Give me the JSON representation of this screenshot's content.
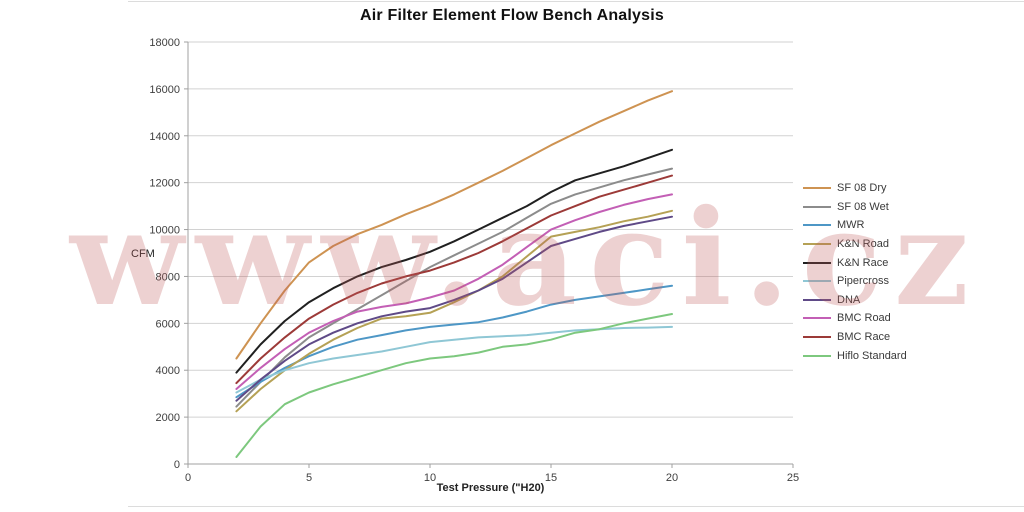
{
  "page": {
    "title": "Air Filter Element Flow Bench Analysis"
  },
  "watermark": {
    "text": "www.aci.cz",
    "color_rgba": "rgba(192,88,88,0.28)"
  },
  "chart_data": {
    "type": "line",
    "title": "Air Filter Element Flow Bench Analysis",
    "xlabel": "Test Pressure (\"H20)",
    "ylabel": "CFM",
    "xlim": [
      0,
      25
    ],
    "ylim": [
      0,
      18000
    ],
    "xticks": [
      0,
      5,
      10,
      15,
      20,
      25
    ],
    "yticks": [
      0,
      2000,
      4000,
      6000,
      8000,
      10000,
      12000,
      14000,
      16000,
      18000
    ],
    "grid": "horizontal-only",
    "legend_position": "right",
    "axis_color": "#a0a0a0",
    "grid_color": "#d2d2d2",
    "x": [
      2,
      3,
      4,
      5,
      6,
      7,
      8,
      9,
      10,
      11,
      12,
      13,
      14,
      15,
      16,
      17,
      18,
      19,
      20
    ],
    "series": [
      {
        "name": "SF 08 Dry",
        "color": "#CE9352",
        "values": [
          4500,
          6000,
          7400,
          8600,
          9300,
          9800,
          10200,
          10650,
          11050,
          11500,
          12000,
          12500,
          13050,
          13600,
          14100,
          14600,
          15050,
          15500,
          15900
        ]
      },
      {
        "name": "SF 08 Wet",
        "color": "#8C8C8C",
        "values": [
          2450,
          3500,
          4550,
          5400,
          6000,
          6600,
          7200,
          7800,
          8400,
          8900,
          9400,
          9900,
          10500,
          11100,
          11500,
          11800,
          12100,
          12350,
          12600
        ]
      },
      {
        "name": "MWR",
        "color": "#4E97C6",
        "values": [
          2850,
          3500,
          4100,
          4600,
          5000,
          5300,
          5500,
          5700,
          5850,
          5950,
          6050,
          6250,
          6500,
          6800,
          7000,
          7150,
          7300,
          7450,
          7600
        ]
      },
      {
        "name": "K&N Road",
        "color": "#B5A155",
        "values": [
          2250,
          3200,
          4000,
          4700,
          5300,
          5800,
          6200,
          6300,
          6450,
          6900,
          7400,
          8000,
          8850,
          9700,
          9900,
          10100,
          10350,
          10550,
          10800
        ]
      },
      {
        "name": "K&N Race",
        "color": "#202020",
        "values": [
          3900,
          5100,
          6100,
          6900,
          7500,
          8000,
          8400,
          8700,
          9050,
          9500,
          10000,
          10500,
          11000,
          11600,
          12100,
          12400,
          12700,
          13050,
          13400
        ]
      },
      {
        "name": "Pipercross",
        "color": "#8FC7D5",
        "values": [
          3050,
          3600,
          4000,
          4300,
          4500,
          4650,
          4800,
          5000,
          5200,
          5300,
          5400,
          5450,
          5500,
          5600,
          5700,
          5750,
          5800,
          5820,
          5850
        ]
      },
      {
        "name": "DNA",
        "color": "#5F4A87",
        "values": [
          2700,
          3600,
          4400,
          5100,
          5600,
          6000,
          6300,
          6500,
          6650,
          7000,
          7400,
          7900,
          8600,
          9300,
          9600,
          9900,
          10150,
          10350,
          10550
        ]
      },
      {
        "name": "BMC Road",
        "color": "#C35FB5",
        "values": [
          3200,
          4100,
          4900,
          5600,
          6100,
          6500,
          6700,
          6850,
          7100,
          7400,
          7900,
          8500,
          9250,
          10000,
          10400,
          10750,
          11050,
          11300,
          11500
        ]
      },
      {
        "name": "BMC Race",
        "color": "#9C3A38",
        "values": [
          3450,
          4500,
          5400,
          6200,
          6800,
          7300,
          7700,
          8000,
          8250,
          8600,
          9000,
          9500,
          10050,
          10600,
          11000,
          11400,
          11700,
          12000,
          12300
        ]
      },
      {
        "name": "Hiflo Standard",
        "color": "#7DC87E",
        "values": [
          300,
          1600,
          2550,
          3050,
          3400,
          3700,
          4000,
          4300,
          4500,
          4600,
          4750,
          5000,
          5100,
          5300,
          5600,
          5750,
          6000,
          6200,
          6400
        ]
      }
    ]
  }
}
